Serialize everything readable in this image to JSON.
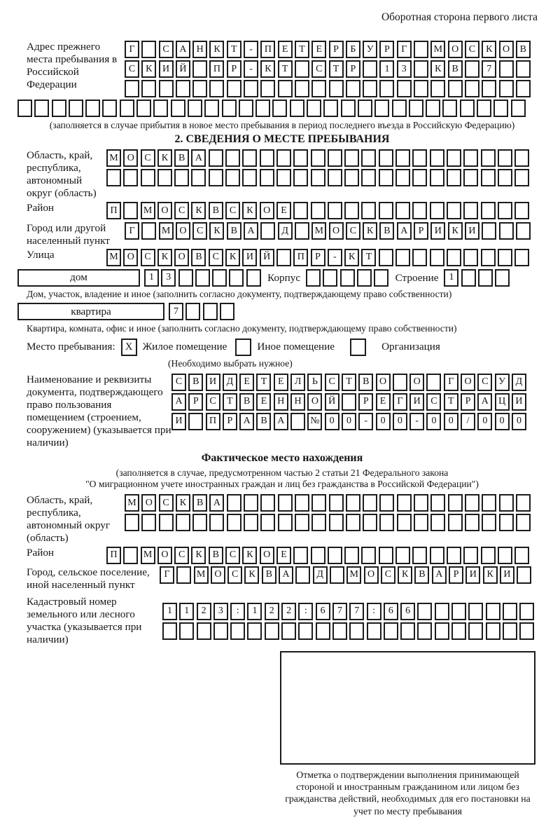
{
  "page": {
    "header_note": "Оборотная сторона первого листа"
  },
  "prev_address": {
    "label": "Адрес прежнего места пребывания в Российской Федерации",
    "rows": [
      {
        "chars": "Г САНКТ-ПЕТЕРБУРГ МОСКОВ",
        "count": 24
      },
      {
        "chars": "СКИЙ ПР-КТ СТР 13 КВ 7",
        "count": 24
      },
      {
        "chars": "",
        "count": 24
      },
      {
        "chars": "",
        "count": 30
      }
    ],
    "caption": "(заполняется в случае прибытия в новое место пребывания в период последнего въезда в Российскую Федерацию)"
  },
  "section2": {
    "title": "2. СВЕДЕНИЯ О МЕСТЕ ПРЕБЫВАНИЯ",
    "oblast": {
      "label": "Область, край, республика, автономный округ (область)",
      "rows": [
        {
          "chars": "МОСКВА",
          "count": 25
        },
        {
          "chars": "",
          "count": 25
        }
      ]
    },
    "raion": {
      "label": "Район",
      "row": {
        "chars": "П МОСКВСКОЕ",
        "count": 25
      }
    },
    "gorod": {
      "label": "Город или другой населенный пункт",
      "row": {
        "chars": "Г МОСКВА Д МОСКВАРИКИ",
        "count": 24
      }
    },
    "ulitsa": {
      "label": "Улица",
      "row": {
        "chars": "МОСКОВСКИЙ ПР-КТ",
        "count": 25
      }
    },
    "dom": {
      "box_label": "дом",
      "row": {
        "chars": "13",
        "count": 7
      },
      "korpus_label": "Корпус",
      "korpus_row": {
        "chars": "",
        "count": 5
      },
      "stroenie_label": "Строение",
      "stroenie_row": {
        "chars": "1",
        "count": 4
      },
      "caption": "Дом, участок, владение и иное (заполнить согласно документу, подтверждающему право собственности)"
    },
    "kvartira": {
      "box_label": "квартира",
      "row": {
        "chars": "7",
        "count": 4
      },
      "caption": "Квартира, комната, офис и иное (заполнить согласно документу, подтверждающему право собственности)"
    },
    "mesto": {
      "label": "Место пребывания:",
      "options": [
        {
          "label": "Жилое помещение",
          "checked": "X"
        },
        {
          "label": "Иное помещение",
          "checked": ""
        },
        {
          "label": "Организация",
          "checked": ""
        }
      ],
      "note": "(Необходимо выбрать нужное)"
    },
    "document": {
      "label": "Наименование и реквизиты документа, подтверждающего право пользования помещением (строением, сооружением) (указывается при наличии)",
      "rows": [
        {
          "chars": "СВИДЕТЕЛЬСТВО О ГОСУД",
          "count": 21
        },
        {
          "chars": "АРСТВЕННОЙ РЕГИСТРАЦИ",
          "count": 21
        },
        {
          "chars": "И ПРАВА №00-00-00/000",
          "count": 21
        }
      ]
    }
  },
  "fact": {
    "title": "Фактическое место нахождения",
    "subtitle1": "(заполняется в случае, предусмотренном частью 2 статьи 21 Федерального закона",
    "subtitle2": "\"О миграционном учете иностранных граждан и лиц без гражданства в Российской Федерации\")",
    "oblast": {
      "label": "Область, край, республика, автономный округ (область)",
      "rows": [
        {
          "chars": "МОСКВА",
          "count": 24
        },
        {
          "chars": "",
          "count": 24
        }
      ]
    },
    "raion": {
      "label": "Район",
      "row": {
        "chars": "П МОСКВСКОЕ",
        "count": 25
      }
    },
    "gorod": {
      "label": "Город, сельское поселение, иной населенный пункт",
      "row": {
        "chars": "Г МОСКВА Д МОСКВАРИКИ",
        "count": 22
      }
    },
    "kadastr": {
      "label": "Кадастровый номер земельного или лесного участка (указывается при наличии)",
      "rows": [
        {
          "chars": "1123:122:677:66",
          "count": 22
        },
        {
          "chars": "",
          "count": 22
        }
      ]
    },
    "stamp_caption": "Отметка о подтверждении выполнения принимающей стороной и иностранным гражданином или лицом без гражданства действий, необходимых для его постановки на учет по месту пребывания"
  }
}
